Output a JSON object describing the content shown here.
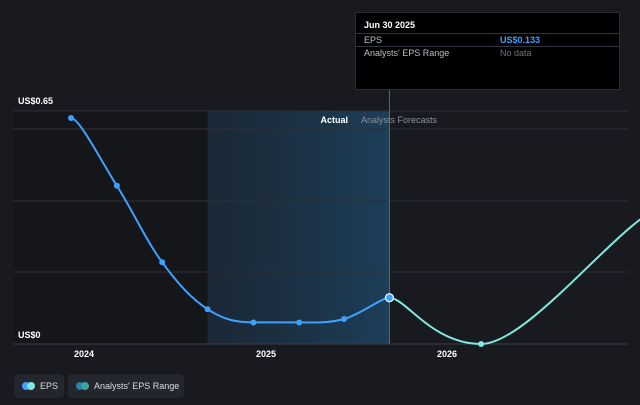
{
  "chart_data": {
    "type": "line",
    "y_top_label": "US$0.65",
    "y_bottom_label": "US$0",
    "ylim": [
      0,
      0.65
    ],
    "x_ticks": [
      "2024",
      "2025",
      "2026"
    ],
    "divider_labels": {
      "actual": "Actual",
      "forecast": "Analysts Forecasts"
    },
    "series": [
      {
        "name": "EPS",
        "segment": "actual",
        "color": "#3ea1ff",
        "points": [
          {
            "x": "2023-09-30",
            "y": 0.65
          },
          {
            "x": "2023-12-31",
            "y": 0.455
          },
          {
            "x": "2024-03-31",
            "y": 0.235
          },
          {
            "x": "2024-06-30",
            "y": 0.1
          },
          {
            "x": "2024-09-30",
            "y": 0.062
          },
          {
            "x": "2024-12-31",
            "y": 0.062
          },
          {
            "x": "2025-03-31",
            "y": 0.072
          },
          {
            "x": "2025-06-30",
            "y": 0.133
          }
        ]
      },
      {
        "name": "EPS",
        "segment": "forecast",
        "color": "#7fe8e2",
        "points": [
          {
            "x": "2025-06-30",
            "y": 0.133
          },
          {
            "x": "2025-12-31",
            "y": 0.0
          },
          {
            "x": "2026-12-31",
            "y": 0.39
          }
        ]
      }
    ],
    "grid": true,
    "legend_position": "bottom-left"
  },
  "tooltip": {
    "date": "Jun 30 2025",
    "rows": [
      {
        "label": "EPS",
        "value": "US$0.133"
      },
      {
        "label": "Analysts' EPS Range",
        "value": "No data"
      }
    ]
  },
  "legend": [
    {
      "label": "EPS",
      "color_a": "#3ea1ff",
      "color_b": "#7fe8e2"
    },
    {
      "label": "Analysts' EPS Range",
      "color_a": "#2a7fb0",
      "color_b": "#3aa59e"
    }
  ]
}
